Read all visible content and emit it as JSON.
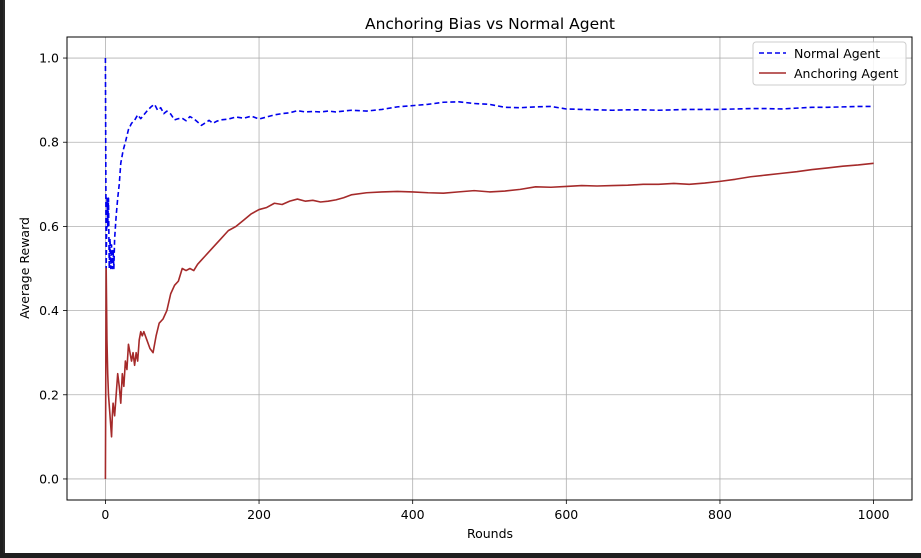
{
  "chart_data": {
    "type": "line",
    "title": "Anchoring Bias vs Normal Agent",
    "xlabel": "Rounds",
    "ylabel": "Average Reward",
    "xlim": [
      -50,
      1050
    ],
    "ylim": [
      -0.05,
      1.05
    ],
    "xticks": [
      0,
      200,
      400,
      600,
      800,
      1000
    ],
    "xtick_labels": [
      "0",
      "200",
      "400",
      "600",
      "800",
      "1000"
    ],
    "yticks": [
      0.0,
      0.2,
      0.4,
      0.6,
      0.8,
      1.0
    ],
    "ytick_labels": [
      "0.0",
      "0.2",
      "0.4",
      "0.6",
      "0.8",
      "1.0"
    ],
    "grid": true,
    "legend_position": "top-right",
    "series": [
      {
        "name": "Normal Agent",
        "color": "#0000ee",
        "linestyle": "dashed",
        "x": [
          0,
          1,
          2,
          3,
          4,
          5,
          6,
          7,
          8,
          9,
          10,
          11,
          12,
          14,
          16,
          18,
          20,
          23,
          26,
          30,
          34,
          38,
          42,
          46,
          50,
          55,
          60,
          64,
          68,
          72,
          76,
          80,
          85,
          90,
          95,
          100,
          105,
          110,
          115,
          120,
          125,
          130,
          135,
          140,
          145,
          150,
          160,
          170,
          180,
          190,
          200,
          210,
          220,
          230,
          240,
          250,
          260,
          270,
          280,
          290,
          300,
          320,
          340,
          360,
          380,
          400,
          420,
          440,
          460,
          480,
          500,
          520,
          540,
          560,
          580,
          600,
          620,
          640,
          660,
          680,
          700,
          720,
          740,
          760,
          780,
          800,
          820,
          840,
          860,
          880,
          900,
          920,
          940,
          960,
          980,
          1000
        ],
        "y": [
          1.0,
          0.5,
          0.667,
          0.6,
          0.667,
          0.5,
          0.571,
          0.5,
          0.556,
          0.5,
          0.545,
          0.5,
          0.571,
          0.625,
          0.667,
          0.7,
          0.75,
          0.78,
          0.8,
          0.83,
          0.845,
          0.852,
          0.865,
          0.856,
          0.865,
          0.876,
          0.885,
          0.89,
          0.876,
          0.882,
          0.868,
          0.874,
          0.867,
          0.853,
          0.856,
          0.857,
          0.851,
          0.861,
          0.856,
          0.848,
          0.84,
          0.846,
          0.852,
          0.845,
          0.85,
          0.853,
          0.855,
          0.86,
          0.857,
          0.862,
          0.855,
          0.86,
          0.865,
          0.868,
          0.87,
          0.875,
          0.872,
          0.873,
          0.872,
          0.874,
          0.872,
          0.876,
          0.874,
          0.878,
          0.884,
          0.887,
          0.89,
          0.895,
          0.896,
          0.892,
          0.89,
          0.883,
          0.882,
          0.884,
          0.885,
          0.879,
          0.878,
          0.877,
          0.876,
          0.877,
          0.877,
          0.876,
          0.877,
          0.878,
          0.878,
          0.878,
          0.879,
          0.88,
          0.88,
          0.879,
          0.881,
          0.883,
          0.883,
          0.884,
          0.885,
          0.885
        ]
      },
      {
        "name": "Anchoring Agent",
        "color": "#a52a2a",
        "linestyle": "solid",
        "x": [
          0,
          1,
          2,
          3,
          4,
          6,
          8,
          9,
          10,
          12,
          14,
          16,
          18,
          20,
          22,
          24,
          26,
          28,
          30,
          32,
          34,
          36,
          38,
          40,
          42,
          44,
          46,
          48,
          50,
          54,
          58,
          62,
          66,
          70,
          75,
          80,
          85,
          90,
          95,
          100,
          105,
          110,
          115,
          120,
          125,
          130,
          140,
          150,
          160,
          170,
          180,
          190,
          200,
          210,
          220,
          230,
          240,
          250,
          260,
          270,
          280,
          290,
          300,
          310,
          320,
          340,
          360,
          380,
          400,
          420,
          440,
          460,
          480,
          500,
          520,
          540,
          560,
          580,
          600,
          620,
          640,
          660,
          680,
          700,
          720,
          740,
          760,
          780,
          800,
          820,
          840,
          860,
          880,
          900,
          920,
          940,
          960,
          980,
          1000
        ],
        "y": [
          0.0,
          0.5,
          0.33,
          0.25,
          0.2,
          0.15,
          0.1,
          0.15,
          0.18,
          0.15,
          0.2,
          0.25,
          0.22,
          0.18,
          0.25,
          0.22,
          0.28,
          0.26,
          0.32,
          0.3,
          0.28,
          0.3,
          0.27,
          0.3,
          0.28,
          0.33,
          0.35,
          0.34,
          0.35,
          0.33,
          0.31,
          0.3,
          0.34,
          0.37,
          0.38,
          0.4,
          0.44,
          0.46,
          0.47,
          0.5,
          0.495,
          0.5,
          0.495,
          0.51,
          0.52,
          0.53,
          0.55,
          0.57,
          0.59,
          0.6,
          0.615,
          0.63,
          0.64,
          0.645,
          0.655,
          0.652,
          0.66,
          0.665,
          0.66,
          0.662,
          0.658,
          0.66,
          0.663,
          0.668,
          0.675,
          0.68,
          0.682,
          0.683,
          0.682,
          0.68,
          0.679,
          0.682,
          0.685,
          0.682,
          0.684,
          0.688,
          0.694,
          0.693,
          0.695,
          0.697,
          0.696,
          0.697,
          0.698,
          0.7,
          0.7,
          0.702,
          0.7,
          0.703,
          0.707,
          0.712,
          0.718,
          0.722,
          0.726,
          0.73,
          0.735,
          0.739,
          0.743,
          0.746,
          0.75
        ]
      }
    ]
  }
}
